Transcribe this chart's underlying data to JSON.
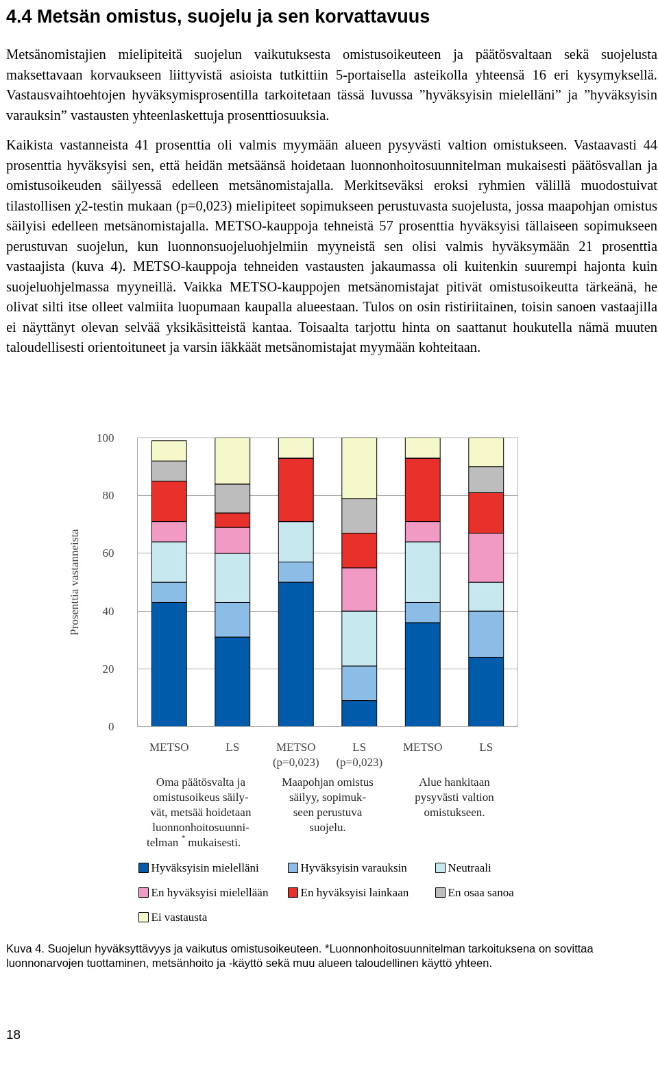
{
  "chart_data": {
    "type": "bar",
    "stacked": true,
    "title": "4.4 Metsän omistus, suojelu ja sen korvattavuus",
    "subtitle": "Metsänomistajien mielipiteitä suojelun vaikutuksesta omistusoikeuteen ja päätösvaltaan sekä suojelusta maksettavaan korvaukseen liittyvistä asioista tutkittiin 5-portaisella asteikolla yhteensä 16 eri kysymyksellä. Vastausvaihtoehtojen hyväksymisprosentilla tarkoitetaan tässä luvussa ”hyväksyisin mielelläni” ja ”hyväksyisin varauksin” vastausten yhteenlaskettuja prosenttiosuuksia.\n\nKaikista vastanneista 41 prosenttia oli valmis myymään alueen pysyvästi valtion omistukseen. Vastaavasti 44 prosenttia hyväksyisi sen, että heidän metsäänsä hoidetaan luonnonhoitosuunnitelman mukaisesti päätösvallan ja omistusoikeuden säilyessä edelleen metsänomistajalla. Merkitseväksi eroksi ryhmien välillä muodostuivat tilastollisen χ2-testin mukaan (p=0,023) mielipiteet sopimukseen perustuvasta suojelusta, jossa maapohjan omistus säilyisi edelleen metsänomistajalla. METSO-kauppoja tehneistä 57 prosenttia hyväksyisi tällaiseen sopimukseen perustuvan suojelun, kun luonnonsuojeluohjelmiin myyneistä sen olisi valmis hyväksymään 21 prosenttia vastaajista (kuva 4). METSO-kauppoja tehneiden vastausten jakaumassa oli kuitenkin suurempi hajonta kuin suojeluohjelmassa myyneillä. Vaikka METSO-kauppojen metsänomistajat pitivät omistusoikeutta tärkeänä, he olivat silti itse olleet valmiita luopumaan kaupalla alueestaan. Tulos on osin ristiriitainen, toisin sanoen vastaajilla ei näyttänyt olevan selvää yksikäsitteistä kantaa. Toisaalta tarjottu hinta on saattanut houkutella nämä muuten taloudellisesti orientoituneet ja varsin iäkkäät metsänomistajat myymään kohteitaan.",
    "ylabel": "Prosenttia vastanneista",
    "categories": [
      "METSO",
      "LS",
      "METSO\n(p=0,023)",
      "LS\n(p=0,023)",
      "METSO",
      "LS"
    ],
    "series": [
      {
        "name": "Hyväksyisin mielelläni",
        "color": "#005baa",
        "values": [
          43,
          31,
          50,
          9,
          36,
          24
        ]
      },
      {
        "name": "Hyväksyisin varauksin",
        "color": "#8bbde6",
        "values": [
          7,
          12,
          7,
          12,
          7,
          16
        ]
      },
      {
        "name": "Neutraali",
        "color": "#c8e8f0",
        "values": [
          14,
          17,
          14,
          19,
          21,
          10
        ]
      },
      {
        "name": "En hyväksyisi mielellään",
        "color": "#f19bc4",
        "values": [
          7,
          9,
          0,
          15,
          7,
          17
        ]
      },
      {
        "name": "En hyväksyisi lainkaan",
        "color": "#e8312a",
        "values": [
          14,
          5,
          22,
          12,
          22,
          14
        ]
      },
      {
        "name": "En osaa sanoa",
        "color": "#bdbdbd",
        "values": [
          7,
          10,
          0,
          12,
          0,
          9
        ]
      },
      {
        "name": "Ei vastausta",
        "color": "#f7f7cc",
        "values": [
          7,
          16,
          7,
          21,
          7,
          10
        ]
      }
    ],
    "ylim": [
      0,
      100
    ],
    "yticks": [
      0,
      20,
      40,
      60,
      80,
      100
    ],
    "grid": "y",
    "legend": "bottom",
    "annotations": [
      "Oma päätösvalta ja\nomistusoikeus säily-\nvät, metsää hoidetaan\nluonnonhoitosuunni-\ntelman$^{*}$ mukaisesti.",
      "Maapohjan omistus\nsäilyy, sopimuk-\nseen perustuva\nsuojelu.",
      "Alue hankitaan\npysyvästi valtion\nomistukseen.",
      "Kuva 4. Suojelun hyväksyttävyys ja vaikutus omistusoikeuteen. *Luonnonhoitosuunnitelman tarkoituksena on sovittaa luonnonarvojen tuottaminen, metsänhoito ja -käyttö sekä muu alueen taloudellinen käyttö yhteen.",
      "18"
    ]
  }
}
